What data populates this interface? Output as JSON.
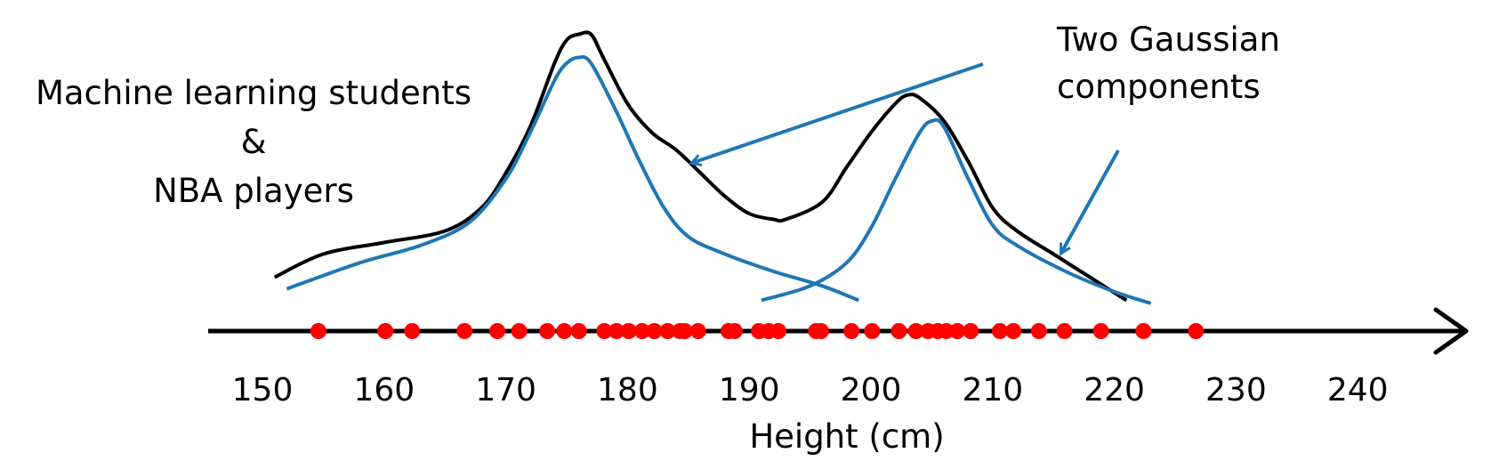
{
  "chart_data": {
    "type": "scatter",
    "xlabel": "Height (cm)",
    "xlim": [
      140,
      240
    ],
    "ticks": [
      150,
      160,
      170,
      180,
      190,
      200,
      210,
      220,
      230,
      240
    ],
    "points": [
      154.6,
      160.1,
      162.3,
      166.6,
      169.3,
      171.1,
      173.4,
      174.8,
      176.0,
      178.1,
      179.1,
      180.1,
      181.2,
      182.2,
      183.3,
      184.3,
      184.7,
      185.8,
      188.3,
      188.8,
      190.8,
      191.6,
      192.4,
      195.5,
      195.9,
      198.4,
      200.1,
      202.3,
      203.7,
      204.7,
      205.5,
      206.2,
      207.1,
      208.2,
      210.6,
      211.7,
      213.8,
      215.9,
      218.9,
      222.4,
      226.7
    ],
    "combined_curve": [
      [
        151,
        -1.1
      ],
      [
        155,
        -0.7
      ],
      [
        160,
        -0.5
      ],
      [
        165,
        -0.3
      ],
      [
        168,
        0.1
      ],
      [
        170,
        0.7
      ],
      [
        172,
        1.5
      ],
      [
        174,
        2.6
      ],
      [
        175,
        3.0
      ],
      [
        176,
        3.1
      ],
      [
        177,
        3.1
      ],
      [
        178,
        2.7
      ],
      [
        180,
        1.9
      ],
      [
        182,
        1.4
      ],
      [
        184,
        1.1
      ],
      [
        186,
        0.7
      ],
      [
        188,
        0.3
      ],
      [
        190,
        0.0
      ],
      [
        192,
        -0.1
      ],
      [
        193,
        -0.1
      ],
      [
        196,
        0.2
      ],
      [
        198,
        0.8
      ],
      [
        200,
        1.4
      ],
      [
        202,
        1.9
      ],
      [
        203,
        2.05
      ],
      [
        204,
        2.0
      ],
      [
        206,
        1.6
      ],
      [
        208,
        0.9
      ],
      [
        210,
        0.1
      ],
      [
        212,
        -0.3
      ],
      [
        215,
        -0.7
      ],
      [
        218,
        -1.1
      ],
      [
        221,
        -1.5
      ]
    ],
    "component_1": [
      [
        152,
        -1.3
      ],
      [
        158,
        -0.85
      ],
      [
        163,
        -0.55
      ],
      [
        167,
        -0.15
      ],
      [
        170,
        0.6
      ],
      [
        172,
        1.4
      ],
      [
        174,
        2.3
      ],
      [
        175,
        2.6
      ],
      [
        176,
        2.7
      ],
      [
        177,
        2.6
      ],
      [
        179,
        1.8
      ],
      [
        181,
        0.9
      ],
      [
        183,
        0.1
      ],
      [
        185,
        -0.4
      ],
      [
        188,
        -0.7
      ],
      [
        192,
        -1.0
      ],
      [
        196,
        -1.25
      ],
      [
        199,
        -1.5
      ]
    ],
    "component_2": [
      [
        191,
        -1.5
      ],
      [
        195,
        -1.25
      ],
      [
        198,
        -0.85
      ],
      [
        200,
        -0.25
      ],
      [
        202,
        0.6
      ],
      [
        204,
        1.4
      ],
      [
        205,
        1.6
      ],
      [
        206,
        1.5
      ],
      [
        208,
        0.6
      ],
      [
        210,
        -0.2
      ],
      [
        212,
        -0.55
      ],
      [
        216,
        -1.0
      ],
      [
        220,
        -1.35
      ],
      [
        223,
        -1.55
      ]
    ],
    "annotations": [
      {
        "text": [
          "Machine learning students",
          "&",
          "NBA players"
        ]
      },
      {
        "text": [
          "Two Gaussian",
          "components"
        ]
      }
    ],
    "colors": {
      "points": "#ff0000",
      "combined": "#000000",
      "components": "#1f77b4",
      "axis": "#000000"
    }
  }
}
